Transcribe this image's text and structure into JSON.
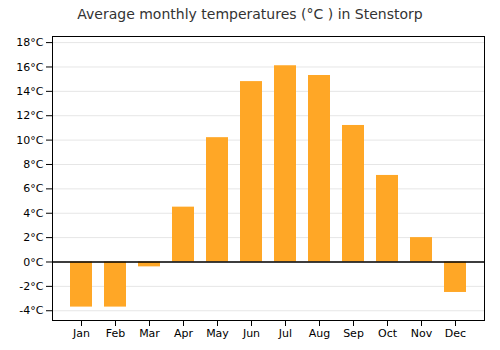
{
  "chart_data": {
    "type": "bar",
    "title": "Average monthly temperatures (°C ) in Stenstorp",
    "categories": [
      "Jan",
      "Feb",
      "Mar",
      "Apr",
      "May",
      "Jun",
      "Jul",
      "Aug",
      "Sep",
      "Oct",
      "Nov",
      "Dec"
    ],
    "values": [
      -3.7,
      -3.7,
      -0.4,
      4.5,
      10.2,
      14.8,
      16.1,
      15.3,
      11.2,
      7.1,
      2.0,
      -2.5
    ],
    "color": "#FFA726",
    "ylim": [
      -4.8,
      18.5
    ],
    "yticks": [
      {
        "value": -4,
        "label": "-4°C"
      },
      {
        "value": -2,
        "label": "-2°C"
      },
      {
        "value": 0,
        "label": "0°C"
      },
      {
        "value": 2,
        "label": "2°C"
      },
      {
        "value": 4,
        "label": "4°C"
      },
      {
        "value": 6,
        "label": "6°C"
      },
      {
        "value": 8,
        "label": "8°C"
      },
      {
        "value": 10,
        "label": "10°C"
      },
      {
        "value": 12,
        "label": "12°C"
      },
      {
        "value": 14,
        "label": "14°C"
      },
      {
        "value": 16,
        "label": "16°C"
      },
      {
        "value": 18,
        "label": "18°C"
      }
    ],
    "grid": true
  }
}
